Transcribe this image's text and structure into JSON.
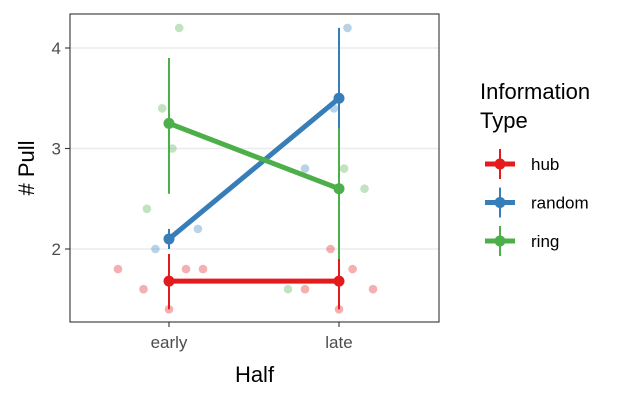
{
  "chart_data": {
    "type": "line",
    "xlabel": "Half",
    "ylabel": "# Pull",
    "categories": [
      "early",
      "late"
    ],
    "yticks": [
      2,
      3,
      4
    ],
    "ylim": [
      1.28,
      4.35
    ],
    "grid": "horizontal-major",
    "legend": {
      "title_lines": [
        "Information",
        "Type"
      ],
      "placement": "right"
    },
    "series": [
      {
        "name": "hub",
        "color": "#E41A1C",
        "means": [
          1.68,
          1.68
        ],
        "errors": [
          [
            1.4,
            1.95
          ],
          [
            1.4,
            1.95
          ]
        ],
        "points": [
          {
            "x": "early",
            "jitter": -0.3,
            "y": 1.8
          },
          {
            "x": "early",
            "jitter": -0.15,
            "y": 1.6
          },
          {
            "x": "early",
            "jitter": 0.1,
            "y": 1.8
          },
          {
            "x": "early",
            "jitter": 0.2,
            "y": 1.8
          },
          {
            "x": "early",
            "jitter": 0.0,
            "y": 1.4
          },
          {
            "x": "late",
            "jitter": -0.05,
            "y": 2.0
          },
          {
            "x": "late",
            "jitter": -0.2,
            "y": 1.6
          },
          {
            "x": "late",
            "jitter": 0.08,
            "y": 1.8
          },
          {
            "x": "late",
            "jitter": 0.2,
            "y": 1.6
          },
          {
            "x": "late",
            "jitter": 0.0,
            "y": 1.4
          }
        ]
      },
      {
        "name": "random",
        "color": "#377EB8",
        "means": [
          2.1,
          3.5
        ],
        "errors": [
          [
            2.0,
            2.2
          ],
          [
            2.8,
            4.2
          ]
        ],
        "points": [
          {
            "x": "early",
            "jitter": -0.08,
            "y": 2.0
          },
          {
            "x": "early",
            "jitter": 0.17,
            "y": 2.2
          },
          {
            "x": "late",
            "jitter": -0.2,
            "y": 2.8
          },
          {
            "x": "late",
            "jitter": -0.03,
            "y": 3.4
          },
          {
            "x": "late",
            "jitter": 0.05,
            "y": 4.2
          }
        ]
      },
      {
        "name": "ring",
        "color": "#4DAF4A",
        "means": [
          3.25,
          2.6
        ],
        "errors": [
          [
            2.55,
            3.9
          ],
          [
            1.9,
            3.2
          ]
        ],
        "points": [
          {
            "x": "early",
            "jitter": -0.13,
            "y": 2.4
          },
          {
            "x": "early",
            "jitter": -0.04,
            "y": 3.4
          },
          {
            "x": "early",
            "jitter": 0.02,
            "y": 3.0
          },
          {
            "x": "early",
            "jitter": 0.06,
            "y": 4.2
          },
          {
            "x": "late",
            "jitter": -0.3,
            "y": 1.6
          },
          {
            "x": "late",
            "jitter": 0.03,
            "y": 2.8
          },
          {
            "x": "late",
            "jitter": 0.15,
            "y": 2.6
          }
        ]
      }
    ]
  }
}
